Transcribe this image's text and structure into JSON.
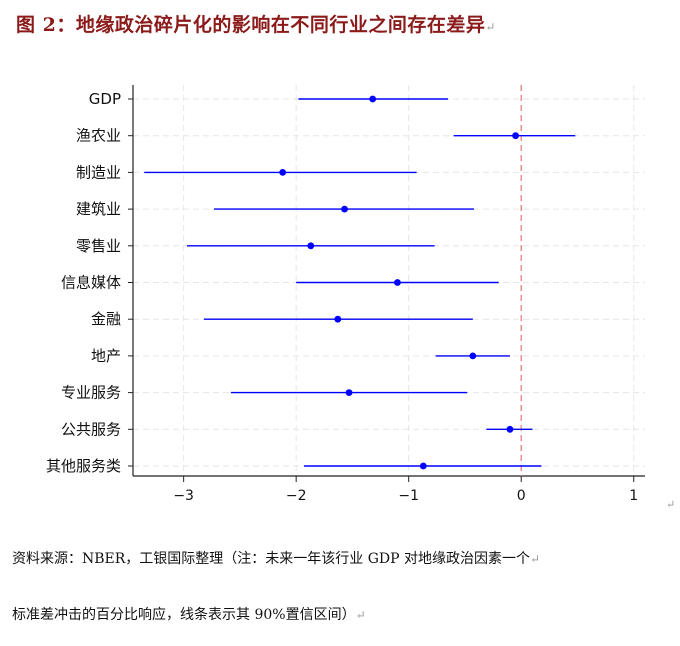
{
  "figure": {
    "title": "图 2：地缘政治碎片化的影响在不同行业之间存在差异",
    "para_mark": "↵"
  },
  "chart_data": {
    "type": "scatter",
    "subtype": "coefficient-plot-with-intervals",
    "title": "",
    "xlabel": "",
    "ylabel": "",
    "xlim": [
      -3.45,
      1.1
    ],
    "xticks": [
      -3,
      -2,
      -1,
      0,
      1
    ],
    "xtick_labels": [
      "−3",
      "−2",
      "−1",
      "0",
      "1"
    ],
    "reference_line": {
      "x": 0,
      "color": "#f08080",
      "style": "dashed"
    },
    "grid": true,
    "point_color": "#0000ff",
    "categories": [
      "GDP",
      "渔农业",
      "制造业",
      "建筑业",
      "零售业",
      "信息媒体",
      "金融",
      "地产",
      "专业服务",
      "公共服务",
      "其他服务类"
    ],
    "values": [
      -1.32,
      -0.05,
      -2.12,
      -1.57,
      -1.87,
      -1.1,
      -1.63,
      -0.43,
      -1.53,
      -0.1,
      -0.87
    ],
    "lower": [
      -1.98,
      -0.6,
      -3.35,
      -2.73,
      -2.97,
      -2.0,
      -2.82,
      -0.76,
      -2.58,
      -0.31,
      -1.93
    ],
    "upper": [
      -0.65,
      0.48,
      -0.93,
      -0.42,
      -0.77,
      -0.2,
      -0.43,
      -0.1,
      -0.48,
      0.1,
      0.18
    ]
  },
  "notes": {
    "line1": "资料来源：NBER，工银国际整理（注：未来一年该行业 GDP 对地缘政治因素一个",
    "line1_mark": "↵",
    "line2": "标准差冲击的百分比响应，线条表示其 90%置信区间）",
    "line2_mark": "↵"
  }
}
